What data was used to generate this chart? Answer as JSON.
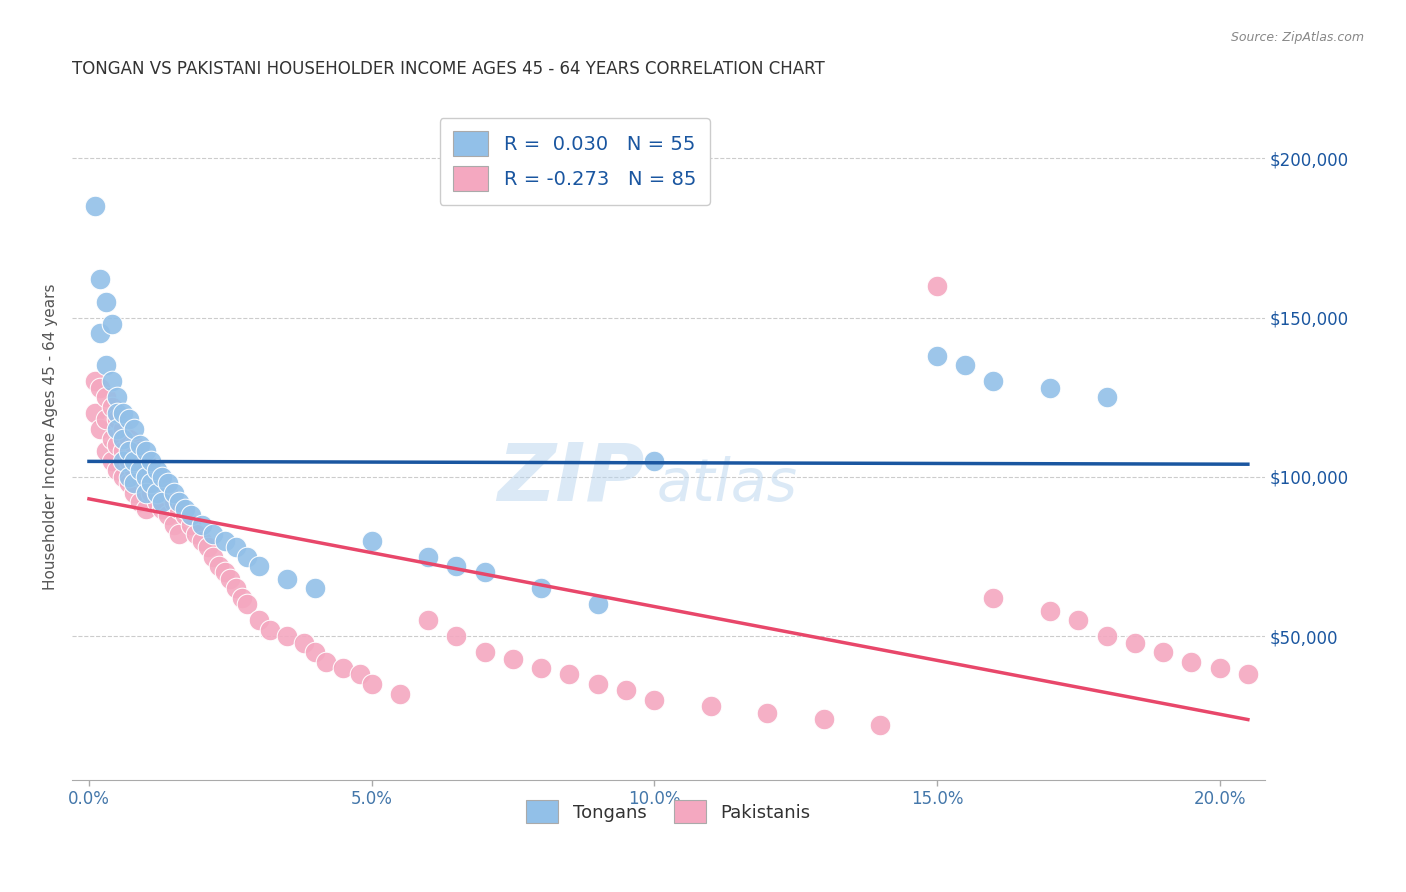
{
  "title": "TONGAN VS PAKISTANI HOUSEHOLDER INCOME AGES 45 - 64 YEARS CORRELATION CHART",
  "source": "Source: ZipAtlas.com",
  "xlabel_ticks": [
    "0.0%",
    "5.0%",
    "10.0%",
    "15.0%",
    "20.0%"
  ],
  "xlabel_tick_vals": [
    0.0,
    0.05,
    0.1,
    0.15,
    0.2
  ],
  "ylabel_ticks": [
    "$50,000",
    "$100,000",
    "$150,000",
    "$200,000"
  ],
  "ylabel_tick_vals": [
    50000,
    100000,
    150000,
    200000
  ],
  "xlim": [
    -0.003,
    0.208
  ],
  "ylim": [
    5000,
    220000
  ],
  "tongan_R": 0.03,
  "tongan_N": 55,
  "pakistani_R": -0.273,
  "pakistani_N": 85,
  "tongan_color": "#92C0E8",
  "pakistani_color": "#F4A8C0",
  "tongan_line_color": "#1A56A0",
  "pakistani_line_color": "#E8476A",
  "legend_label_1": "Tongans",
  "legend_label_2": "Pakistanis",
  "ylabel": "Householder Income Ages 45 - 64 years",
  "watermark_z": "ZIP",
  "watermark_a": "atlas",
  "grid_color": "#cccccc",
  "background_color": "#ffffff",
  "tongan_x": [
    0.001,
    0.002,
    0.002,
    0.003,
    0.003,
    0.004,
    0.004,
    0.005,
    0.005,
    0.005,
    0.006,
    0.006,
    0.006,
    0.007,
    0.007,
    0.007,
    0.008,
    0.008,
    0.008,
    0.009,
    0.009,
    0.01,
    0.01,
    0.01,
    0.011,
    0.011,
    0.012,
    0.012,
    0.013,
    0.013,
    0.014,
    0.015,
    0.016,
    0.017,
    0.018,
    0.02,
    0.022,
    0.024,
    0.026,
    0.028,
    0.03,
    0.035,
    0.04,
    0.05,
    0.06,
    0.065,
    0.07,
    0.08,
    0.09,
    0.1,
    0.15,
    0.155,
    0.16,
    0.17,
    0.18
  ],
  "tongan_y": [
    185000,
    162000,
    145000,
    155000,
    135000,
    148000,
    130000,
    125000,
    120000,
    115000,
    120000,
    112000,
    105000,
    118000,
    108000,
    100000,
    115000,
    105000,
    98000,
    110000,
    102000,
    108000,
    100000,
    95000,
    105000,
    98000,
    102000,
    95000,
    100000,
    92000,
    98000,
    95000,
    92000,
    90000,
    88000,
    85000,
    82000,
    80000,
    78000,
    75000,
    72000,
    68000,
    65000,
    80000,
    75000,
    72000,
    70000,
    65000,
    60000,
    105000,
    138000,
    135000,
    130000,
    128000,
    125000
  ],
  "pakistani_x": [
    0.001,
    0.001,
    0.002,
    0.002,
    0.003,
    0.003,
    0.003,
    0.004,
    0.004,
    0.004,
    0.005,
    0.005,
    0.005,
    0.006,
    0.006,
    0.006,
    0.007,
    0.007,
    0.007,
    0.008,
    0.008,
    0.008,
    0.009,
    0.009,
    0.009,
    0.01,
    0.01,
    0.01,
    0.011,
    0.011,
    0.012,
    0.012,
    0.013,
    0.013,
    0.014,
    0.014,
    0.015,
    0.015,
    0.016,
    0.016,
    0.017,
    0.018,
    0.019,
    0.02,
    0.021,
    0.022,
    0.023,
    0.024,
    0.025,
    0.026,
    0.027,
    0.028,
    0.03,
    0.032,
    0.035,
    0.038,
    0.04,
    0.042,
    0.045,
    0.048,
    0.05,
    0.055,
    0.06,
    0.065,
    0.07,
    0.075,
    0.08,
    0.085,
    0.09,
    0.095,
    0.1,
    0.11,
    0.12,
    0.13,
    0.14,
    0.15,
    0.16,
    0.17,
    0.175,
    0.18,
    0.185,
    0.19,
    0.195,
    0.2,
    0.205
  ],
  "pakistani_y": [
    130000,
    120000,
    128000,
    115000,
    125000,
    118000,
    108000,
    122000,
    112000,
    105000,
    118000,
    110000,
    102000,
    115000,
    108000,
    100000,
    112000,
    105000,
    98000,
    110000,
    102000,
    95000,
    108000,
    100000,
    92000,
    105000,
    98000,
    90000,
    102000,
    95000,
    100000,
    92000,
    98000,
    90000,
    95000,
    88000,
    92000,
    85000,
    90000,
    82000,
    88000,
    85000,
    82000,
    80000,
    78000,
    75000,
    72000,
    70000,
    68000,
    65000,
    62000,
    60000,
    55000,
    52000,
    50000,
    48000,
    45000,
    42000,
    40000,
    38000,
    35000,
    32000,
    55000,
    50000,
    45000,
    43000,
    40000,
    38000,
    35000,
    33000,
    30000,
    28000,
    26000,
    24000,
    22000,
    160000,
    62000,
    58000,
    55000,
    50000,
    48000,
    45000,
    42000,
    40000,
    38000
  ]
}
